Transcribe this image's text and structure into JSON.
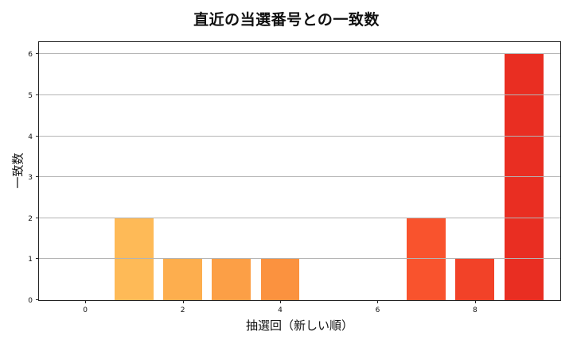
{
  "chart_data": {
    "type": "bar",
    "title": "直近の当選番号との一致数",
    "xlabel": "抽選回（新しい順）",
    "ylabel": "一致数",
    "categories": [
      0,
      1,
      2,
      3,
      4,
      5,
      6,
      7,
      8,
      9
    ],
    "values": [
      0,
      2,
      1,
      1,
      1,
      0,
      0,
      2,
      1,
      6
    ],
    "colors": [
      "#FEC45C",
      "#FEBA57",
      "#FDAE4E",
      "#FC9F46",
      "#FB923F",
      "#FA7A36",
      "#F96531",
      "#F9532D",
      "#F24228",
      "#E92E22"
    ],
    "xticks": [
      0,
      2,
      4,
      6,
      8
    ],
    "yticks": [
      0,
      1,
      2,
      3,
      4,
      5,
      6
    ],
    "xlim": [
      -0.95,
      9.75
    ],
    "ylim": [
      0,
      6.3
    ],
    "grid": "y",
    "legend": null
  }
}
